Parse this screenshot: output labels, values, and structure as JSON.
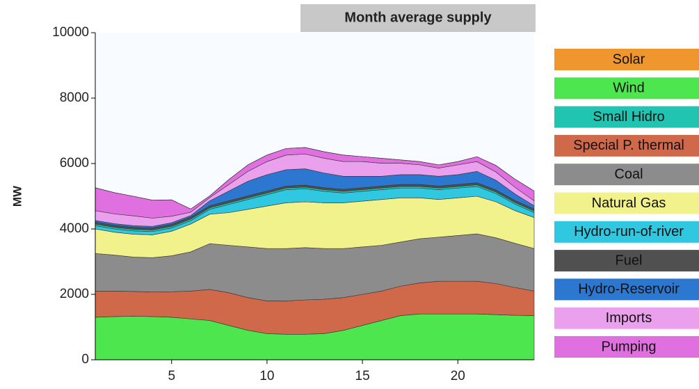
{
  "chart_data": {
    "type": "stacked-area",
    "title": "Month average supply",
    "y_label": "MW",
    "x": [
      1,
      2,
      3,
      4,
      5,
      6,
      7,
      8,
      9,
      10,
      11,
      12,
      13,
      14,
      15,
      16,
      17,
      18,
      19,
      20,
      21,
      22,
      23,
      24
    ],
    "xlim": [
      1,
      24
    ],
    "xticks": [
      5,
      10,
      15,
      20
    ],
    "ylim": [
      0,
      10000
    ],
    "yticks": [
      0,
      2000,
      4000,
      6000,
      8000,
      10000
    ],
    "series": [
      {
        "name": "Solar",
        "color": "#f0962e",
        "values": [
          0,
          0,
          0,
          0,
          0,
          0,
          0,
          0,
          0,
          0,
          0,
          0,
          0,
          0,
          0,
          0,
          0,
          0,
          0,
          0,
          0,
          0,
          0,
          0
        ]
      },
      {
        "name": "Wind",
        "color": "#4ee64e",
        "values": [
          1300,
          1320,
          1330,
          1320,
          1300,
          1250,
          1200,
          1050,
          900,
          800,
          780,
          780,
          800,
          900,
          1050,
          1200,
          1350,
          1400,
          1400,
          1400,
          1400,
          1380,
          1360,
          1350
        ]
      },
      {
        "name": "Small Hidro",
        "color": "#20c4b0",
        "values": [
          50,
          50,
          50,
          50,
          50,
          50,
          50,
          50,
          50,
          50,
          50,
          50,
          50,
          50,
          50,
          50,
          50,
          50,
          50,
          50,
          50,
          50,
          50,
          50
        ]
      },
      {
        "name": "Special P. thermal",
        "color": "#d0684a",
        "values": [
          800,
          780,
          760,
          750,
          780,
          850,
          950,
          1000,
          1000,
          1000,
          1020,
          1050,
          1050,
          1000,
          950,
          900,
          900,
          950,
          1000,
          1000,
          1000,
          950,
          850,
          750
        ]
      },
      {
        "name": "Coal",
        "color": "#8c8c8c",
        "values": [
          1150,
          1100,
          1050,
          1050,
          1100,
          1200,
          1400,
          1450,
          1550,
          1600,
          1600,
          1600,
          1550,
          1500,
          1450,
          1400,
          1350,
          1350,
          1350,
          1400,
          1450,
          1400,
          1350,
          1300
        ]
      },
      {
        "name": "Natural Gas",
        "color": "#f2f28c",
        "values": [
          750,
          700,
          700,
          700,
          750,
          850,
          900,
          1000,
          1150,
          1300,
          1400,
          1400,
          1400,
          1400,
          1400,
          1400,
          1350,
          1250,
          1150,
          1150,
          1150,
          1100,
          1000,
          950
        ]
      },
      {
        "name": "Hydro-run-of-river",
        "color": "#30c8e0",
        "values": [
          100,
          100,
          100,
          100,
          100,
          100,
          150,
          250,
          300,
          350,
          400,
          400,
          350,
          300,
          300,
          300,
          300,
          300,
          300,
          300,
          300,
          250,
          200,
          150
        ]
      },
      {
        "name": "Fuel",
        "color": "#505050",
        "values": [
          60,
          60,
          60,
          60,
          60,
          60,
          60,
          60,
          60,
          60,
          60,
          60,
          60,
          60,
          60,
          60,
          60,
          60,
          60,
          60,
          60,
          60,
          60,
          60
        ]
      },
      {
        "name": "Hydro-Reservoir",
        "color": "#2c78d0",
        "values": [
          50,
          50,
          50,
          50,
          50,
          50,
          150,
          300,
          450,
          500,
          500,
          500,
          450,
          400,
          350,
          300,
          300,
          300,
          300,
          300,
          350,
          300,
          200,
          100
        ]
      },
      {
        "name": "Imports",
        "color": "#eba0ee",
        "values": [
          300,
          300,
          300,
          250,
          200,
          100,
          100,
          200,
          300,
          400,
          450,
          450,
          450,
          450,
          450,
          400,
          350,
          300,
          250,
          300,
          300,
          250,
          200,
          150
        ]
      },
      {
        "name": "Pumping",
        "color": "#e070e0",
        "values": [
          700,
          650,
          600,
          550,
          500,
          100,
          50,
          150,
          200,
          200,
          200,
          200,
          200,
          200,
          150,
          150,
          100,
          100,
          100,
          100,
          150,
          200,
          250,
          300
        ]
      }
    ]
  }
}
